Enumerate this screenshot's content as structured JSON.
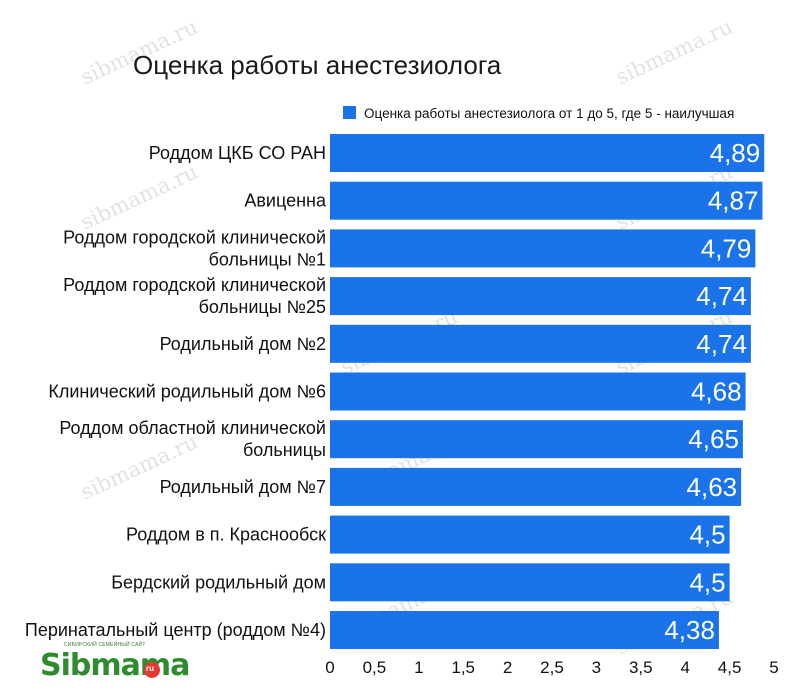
{
  "chart_data": {
    "type": "bar",
    "orientation": "horizontal",
    "title": "Оценка работы анестезиолога",
    "legend": "Оценка работы анестезиолога от 1 до 5, где 5 - наилучшая",
    "legend_position": "top-right",
    "categories": [
      [
        "Роддом ЦКБ СО РАН"
      ],
      [
        "Авиценна"
      ],
      [
        "Роддом городской клинической",
        "больницы №1"
      ],
      [
        "Роддом городской клинической",
        "больницы №25"
      ],
      [
        "Родильный дом №2"
      ],
      [
        "Клинический родильный дом №6"
      ],
      [
        "Роддом областной клинической",
        "больницы"
      ],
      [
        "Родильный дом №7"
      ],
      [
        "Роддом в п. Краснообск"
      ],
      [
        "Бердский родильный дом"
      ],
      [
        "Перинатальный центр (роддом №4)"
      ]
    ],
    "values": [
      4.89,
      4.87,
      4.79,
      4.74,
      4.74,
      4.68,
      4.65,
      4.63,
      4.5,
      4.5,
      4.38
    ],
    "value_labels": [
      "4,89",
      "4,87",
      "4,79",
      "4,74",
      "4,74",
      "4,68",
      "4,65",
      "4,63",
      "4,5",
      "4,5",
      "4,38"
    ],
    "xlim": [
      0,
      5
    ],
    "x_ticks": [
      0,
      0.5,
      1,
      1.5,
      2,
      2.5,
      3,
      3.5,
      4,
      4.5,
      5
    ],
    "x_tick_labels": [
      "0",
      "0,5",
      "1",
      "1,5",
      "2",
      "2,5",
      "3",
      "3,5",
      "4",
      "4,5",
      "5"
    ],
    "grid": false,
    "bar_color": "#1a73e8"
  },
  "watermark": {
    "text": "sibmama.ru"
  },
  "logo": {
    "brand": "Sibmama",
    "tagline": "СИБИРСКИЙ СЕМЕЙНЫЙ САЙТ",
    "suffix": "ru"
  }
}
